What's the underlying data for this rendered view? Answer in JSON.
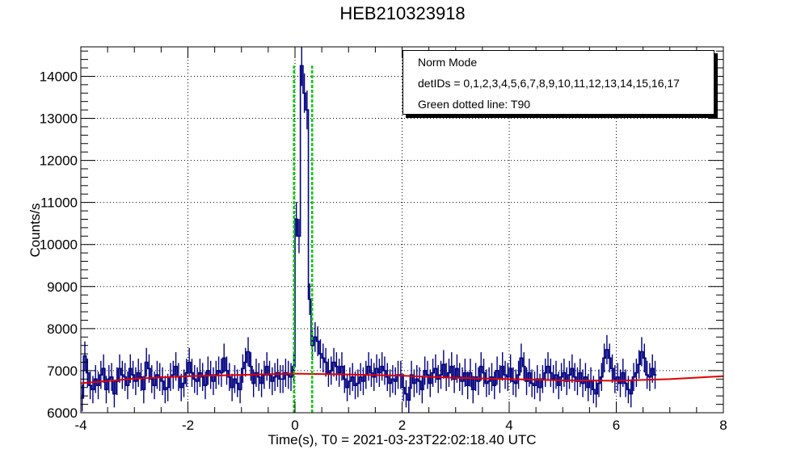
{
  "chart_data": {
    "type": "line",
    "title": "HEB210323918",
    "xlabel": "Time(s), T0 = 2021-03-23T22:02:18.40 UTC",
    "ylabel": "Counts/s",
    "xlim": [
      -4,
      8
    ],
    "ylim": [
      6000,
      14700
    ],
    "grid": true,
    "x_ticks": [
      "-4",
      "-2",
      "0",
      "2",
      "4",
      "6",
      "8"
    ],
    "y_ticks": [
      "6000",
      "7000",
      "8000",
      "9000",
      "10000",
      "11000",
      "12000",
      "13000",
      "14000"
    ],
    "legend": {
      "placement": "top-right",
      "entries": [
        "Norm Mode",
        "detIDs = 0,1,2,3,4,5,6,7,8,9,10,11,12,13,14,15,16,17",
        "Green dotted line: T90"
      ]
    },
    "series": [
      {
        "kind": "histogram-with-errors",
        "color": "#000080",
        "bin_width": 0.05,
        "x_start": -4.0,
        "values": [
          6350,
          7350,
          6950,
          6650,
          6550,
          6800,
          6650,
          6900,
          7050,
          6550,
          6800,
          6850,
          6450,
          6750,
          7050,
          6900,
          6850,
          6650,
          7050,
          6900,
          6750,
          6950,
          6850,
          6550,
          7200,
          7050,
          6800,
          6650,
          6900,
          6850,
          6750,
          6550,
          6600,
          6850,
          6900,
          7100,
          6850,
          6600,
          6700,
          6950,
          7200,
          6950,
          6800,
          6750,
          6950,
          6850,
          6650,
          7000,
          6900,
          6750,
          6900,
          7000,
          6950,
          7300,
          7000,
          6850,
          6600,
          6800,
          6700,
          6550,
          7050,
          7200,
          7450,
          7100,
          6700,
          6950,
          6850,
          6700,
          6900,
          7100,
          6900,
          6750,
          6850,
          6950,
          6800,
          6800,
          6950,
          6900,
          6850,
          7100,
          10600,
          10200,
          14250,
          13600,
          13200,
          8700,
          7600,
          7800,
          7700,
          7400,
          7300,
          7200,
          6950,
          7000,
          7200,
          7100,
          6950,
          7100,
          6800,
          6600,
          6750,
          6850,
          6650,
          6700,
          6850,
          6750,
          6900,
          7100,
          6950,
          6850,
          7050,
          6950,
          7100,
          7000,
          6850,
          6700,
          6800,
          6750,
          6900,
          6900,
          6600,
          6450,
          6300,
          6900,
          6700,
          6800,
          6750,
          6550,
          7000,
          6900,
          6700,
          6950,
          7050,
          6800,
          6900,
          7150,
          6850,
          6950,
          7100,
          6800,
          7050,
          6850,
          6750,
          6950,
          6650,
          6950,
          6550,
          6850,
          6750,
          7100,
          6950,
          6700,
          6750,
          6850,
          6650,
          7000,
          6800,
          7100,
          6900,
          6850,
          7050,
          6750,
          6700,
          6900,
          7300,
          7100,
          6750,
          6950,
          6700,
          6650,
          6800,
          6600,
          6800,
          6950,
          7100,
          6950,
          6800,
          6900,
          6650,
          6850,
          6950,
          6750,
          6900,
          7050,
          6850,
          6750,
          6950,
          6700,
          6850,
          6600,
          6750,
          6550,
          6450,
          6700,
          6850,
          7300,
          7500,
          7300,
          7050,
          6800,
          6850,
          6700,
          6950,
          6700,
          6550,
          6450,
          6850,
          6950,
          7150,
          7450,
          7300,
          6900,
          6850,
          7050,
          6900
        ]
      },
      {
        "kind": "background-fit",
        "color": "#e00000",
        "x": [
          -4,
          -3,
          -2,
          -1,
          0,
          1,
          2,
          3,
          4,
          5,
          6,
          7,
          8
        ],
        "values": [
          6700,
          6810,
          6870,
          6900,
          6930,
          6910,
          6880,
          6830,
          6800,
          6770,
          6760,
          6800,
          6870
        ]
      }
    ],
    "t90_lines": {
      "color": "#00cc00",
      "x": [
        -0.02,
        0.32
      ]
    }
  }
}
